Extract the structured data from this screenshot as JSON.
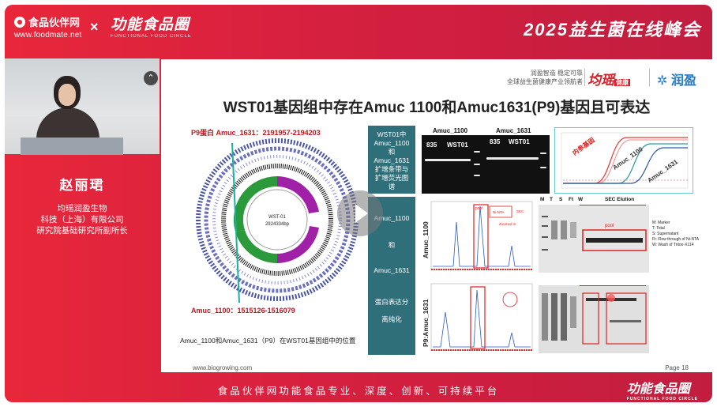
{
  "header": {
    "foodmate_name": "食品伙伴网",
    "foodmate_url": "www.foodmate.net",
    "separator": "×",
    "ff_logo": "功能食品圈",
    "ff_logo_sub": "FUNCTIONAL FOOD CIRCLE",
    "event_title": "2025益生菌在线峰会"
  },
  "speaker": {
    "collapse_icon": "⌃",
    "name": "赵丽珺",
    "org_lines": [
      "均瑶润盈生物",
      "科技（上海）有限公司",
      "研究院基础研究所副所长"
    ]
  },
  "slide": {
    "tagline": [
      "润盈智造  稳定可靠",
      "全球益生菌健康产业领航者"
    ],
    "brand_junyao": "均瑶",
    "brand_junyao_tag": "健康",
    "brand_runying": "润盈",
    "title": "WST01基因组中存在Amuc 1100和Amuc1631(P9)基因且可表达",
    "genome_top_label": "P9蛋白  Amuc_1631：2191957-2194203",
    "genome_bottom_label": "Amuc_1100：1515126-1516079",
    "genome_center_name": "WST-01",
    "genome_center_size": "2924334bp",
    "genome_caption": "Amuc_1100和Amuc_1631（P9）在WST01基因组中的位置",
    "teal_top_text": [
      "WST01中",
      "Amuc_1100",
      "和",
      "Amuc_1631",
      "扩增条带与",
      "扩增荧光图",
      "谱"
    ],
    "teal_bottom": [
      "Amuc_1100",
      "和",
      "Amuc_1631",
      "蛋白表达分",
      "离纯化"
    ],
    "gel_heads": [
      "Amuc_1100",
      "Amuc_1631"
    ],
    "gel_lane_labels": [
      "835",
      "WST01",
      "835",
      "WST01"
    ],
    "qpcr_labels": [
      "内参基因",
      "Amuc_1100",
      "Amuc_1631"
    ],
    "chrom_ylabels": [
      "Amuc_1100",
      "P9:Amuc_1631"
    ],
    "chrom_annotations": [
      "Ni-NTA",
      "pool",
      "Zoomed in",
      "SEC"
    ],
    "sds_heads": [
      "M",
      "T",
      "S",
      "Ft",
      "W",
      "SEC Elution"
    ],
    "sds_pool": "pool",
    "sds_legend": [
      "M: Marker",
      "T: Total",
      "S: Supernatant",
      "Ft: Flow through of Ni-NTA",
      "W: Wash of Triton-X114"
    ],
    "footer_url": "www.biogrowing.com",
    "footer_page": "Page 18"
  },
  "footer": {
    "slogan": "食品伙伴网功能食品专业、深度、创新、可持续平台",
    "logo": "功能食品圈",
    "logo_sub": "FUNCTIONAL FOOD CIRCLE"
  },
  "colors": {
    "bar_red": "#e8273a",
    "teal": "#2e6f7a",
    "slide_red": "#c0151f"
  }
}
